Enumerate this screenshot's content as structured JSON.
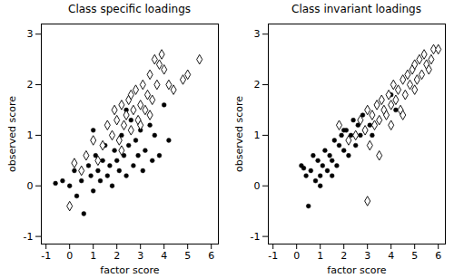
{
  "chart_data": [
    {
      "type": "scatter",
      "title": "Class specific loadings",
      "x_label": "factor score",
      "y_label": "observed score",
      "xlim": [
        -1.2,
        6.3
      ],
      "xticks": [
        -1,
        0,
        1,
        2,
        3,
        4,
        5,
        6
      ],
      "ylim": [
        -1.15,
        3.2
      ],
      "yticks": [
        -1,
        0,
        1,
        2,
        3
      ],
      "grid": false,
      "series": [
        {
          "color": "#000000",
          "marker": "circle",
          "x": [
            -0.6,
            -0.3,
            0.0,
            0.2,
            0.3,
            0.5,
            0.6,
            0.8,
            0.9,
            1.0,
            1.1,
            1.2,
            1.3,
            1.4,
            1.5,
            1.6,
            1.7,
            1.8,
            1.9,
            2.0,
            2.1,
            2.2,
            2.3,
            2.4,
            2.5,
            2.6,
            2.7,
            2.8,
            2.9,
            3.0,
            3.1,
            3.2,
            3.4,
            3.5,
            3.6,
            3.8,
            4.0,
            4.2,
            1.0,
            2.4
          ],
          "values": [
            0.05,
            0.1,
            0.0,
            0.3,
            -0.2,
            0.1,
            -0.55,
            0.4,
            0.2,
            -0.1,
            0.6,
            0.3,
            0.1,
            0.5,
            0.8,
            0.2,
            0.4,
            0.0,
            0.7,
            0.5,
            0.3,
            1.0,
            0.6,
            0.2,
            0.8,
            1.3,
            0.4,
            0.9,
            0.6,
            1.1,
            0.3,
            0.7,
            1.2,
            0.5,
            1.0,
            0.6,
            1.6,
            0.9,
            1.1,
            1.5
          ]
        },
        {
          "color": "#000000",
          "marker": "diamond",
          "x": [
            0.0,
            0.2,
            0.5,
            0.7,
            1.0,
            1.2,
            1.4,
            1.6,
            1.8,
            2.0,
            2.1,
            2.2,
            2.3,
            2.4,
            2.5,
            2.6,
            2.7,
            2.8,
            2.9,
            3.0,
            3.1,
            3.2,
            3.3,
            3.4,
            3.5,
            3.6,
            3.7,
            3.8,
            4.0,
            4.2,
            4.4,
            4.8,
            5.0,
            5.5,
            2.6,
            3.0,
            3.4,
            3.9,
            1.9,
            2.2
          ],
          "values": [
            -0.4,
            0.45,
            0.3,
            0.6,
            0.9,
            0.5,
            0.8,
            1.2,
            1.0,
            1.3,
            0.9,
            1.6,
            1.2,
            1.4,
            1.7,
            1.1,
            1.5,
            1.9,
            1.3,
            1.6,
            2.0,
            1.5,
            1.8,
            2.2,
            1.7,
            2.5,
            2.0,
            2.4,
            2.3,
            2.0,
            1.9,
            2.1,
            2.2,
            2.5,
            1.8,
            1.2,
            1.4,
            2.6,
            1.5,
            0.7
          ]
        }
      ]
    },
    {
      "type": "scatter",
      "title": "Class invariant loadings",
      "x_label": "factor score",
      "y_label": "observed score",
      "xlim": [
        -1.2,
        6.3
      ],
      "xticks": [
        -1,
        0,
        1,
        2,
        3,
        4,
        5,
        6
      ],
      "ylim": [
        -1.15,
        3.2
      ],
      "yticks": [
        -1,
        0,
        1,
        2,
        3
      ],
      "grid": false,
      "series": [
        {
          "color": "#000000",
          "marker": "circle",
          "x": [
            0.2,
            0.4,
            0.5,
            0.6,
            0.8,
            0.9,
            1.0,
            1.1,
            1.2,
            1.3,
            1.4,
            1.5,
            1.6,
            1.7,
            1.8,
            1.9,
            2.0,
            2.1,
            2.2,
            2.3,
            2.4,
            2.5,
            2.6,
            2.7,
            2.8,
            2.9,
            3.0,
            3.1,
            3.2,
            3.4,
            3.5,
            3.6,
            3.8,
            4.0,
            4.2,
            0.3,
            0.7,
            1.0,
            1.5,
            2.0
          ],
          "values": [
            0.4,
            0.2,
            -0.4,
            0.3,
            0.1,
            0.5,
            0.0,
            0.4,
            0.7,
            0.3,
            0.6,
            0.5,
            0.9,
            0.4,
            0.8,
            1.0,
            0.7,
            1.1,
            0.6,
            1.0,
            1.3,
            0.8,
            1.2,
            1.0,
            1.4,
            1.1,
            1.5,
            1.2,
            1.0,
            1.6,
            1.3,
            1.7,
            1.4,
            1.8,
            1.5,
            0.35,
            0.6,
            0.2,
            0.2,
            1.1
          ]
        },
        {
          "color": "#000000",
          "marker": "diamond",
          "x": [
            1.8,
            2.2,
            2.5,
            2.7,
            2.9,
            3.0,
            3.1,
            3.2,
            3.3,
            3.4,
            3.5,
            3.6,
            3.7,
            3.8,
            3.9,
            4.0,
            4.1,
            4.2,
            4.3,
            4.4,
            4.5,
            4.6,
            4.7,
            4.8,
            4.9,
            5.0,
            5.1,
            5.2,
            5.3,
            5.4,
            5.5,
            5.6,
            5.7,
            5.8,
            6.0,
            3.0,
            3.5,
            4.0,
            4.5,
            5.0
          ],
          "values": [
            1.2,
            0.9,
            1.0,
            1.3,
            1.1,
            1.5,
            0.8,
            1.4,
            1.2,
            1.6,
            1.3,
            1.7,
            1.5,
            1.4,
            1.8,
            1.6,
            2.0,
            1.7,
            1.9,
            1.5,
            2.1,
            1.8,
            2.2,
            2.0,
            2.3,
            2.4,
            2.1,
            2.5,
            2.2,
            2.6,
            2.4,
            2.3,
            2.5,
            2.7,
            2.7,
            -0.3,
            0.6,
            1.2,
            1.4,
            1.9
          ]
        }
      ]
    }
  ]
}
